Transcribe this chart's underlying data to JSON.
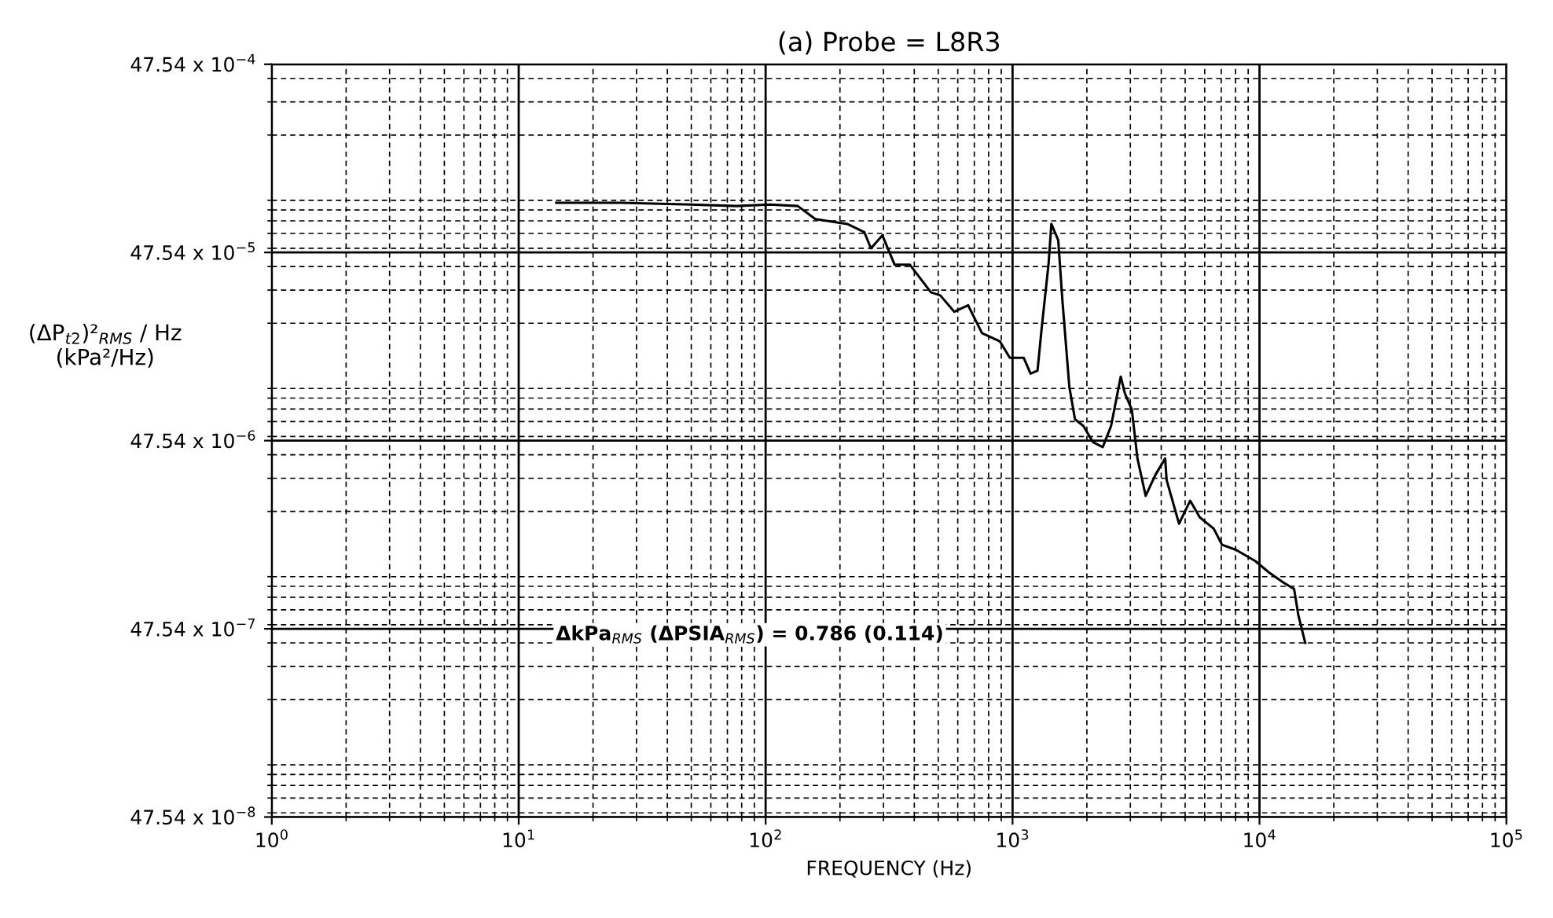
{
  "chart_data": {
    "type": "line",
    "title": "(a) Probe = L8R3",
    "xlabel": "FREQUENCY (Hz)",
    "ylabel": "(ΔP$_{t2}$)²$_{RMS}$ / Hz\n(kPa²/Hz)",
    "log": "xy",
    "grid": true,
    "marker": "none",
    "line_style": "solid",
    "xlim": [
      1,
      100000
    ],
    "xticks": [
      {
        "value": 1,
        "label": "10$^{0}$"
      },
      {
        "value": 10,
        "label": "10$^{1}$"
      },
      {
        "value": 100,
        "label": "10$^{2}$"
      },
      {
        "value": 1000,
        "label": "10$^{3}$"
      },
      {
        "value": 10000,
        "label": "10$^{4}$"
      },
      {
        "value": 100000,
        "label": "10$^{5}$"
      }
    ],
    "ylim": [
      4.754e-07,
      0.004754
    ],
    "yticks": [
      {
        "value": 4.754e-07,
        "label": "47.54 x 10$^{−8}$"
      },
      {
        "value": 4.754e-06,
        "label": "47.54 x 10$^{−7}$"
      },
      {
        "value": 4.754e-05,
        "label": "47.54 x 10$^{−6}$"
      },
      {
        "value": 0.0004754,
        "label": "47.54 x 10$^{−5}$"
      },
      {
        "value": 0.004754,
        "label": "47.54 x 10$^{−4}$"
      }
    ],
    "annotations": [
      "ΔkPa$_{RMS}$ (ΔPSIA$_{RMS}$) = 0.786 (0.114)"
    ],
    "series": [
      {
        "color": "#000000",
        "x": [
          14.2,
          26.1,
          49.7,
          76.2,
          104,
          135,
          159,
          214,
          251,
          267,
          297,
          333,
          384,
          467,
          510,
          581,
          661,
          752,
          889,
          975,
          1109,
          1183,
          1262,
          1312,
          1400,
          1436,
          1531,
          1592,
          1698,
          1790,
          1936,
          2118,
          2318,
          2506,
          2742,
          2851,
          3041,
          3205,
          3460,
          3790,
          4150,
          4206,
          4723,
          5237,
          5733,
          6527,
          7053,
          8022,
          9612,
          10940,
          12470,
          13810,
          14360,
          15320
        ],
        "values": [
          0.000873,
          0.000873,
          0.000855,
          0.000839,
          0.000855,
          0.000839,
          0.000715,
          0.000674,
          0.00061,
          0.0005,
          0.000586,
          0.000409,
          0.000409,
          0.000292,
          0.000281,
          0.00023,
          0.000249,
          0.000177,
          0.00016,
          0.000131,
          0.000131,
          0.000108,
          0.000112,
          0.000188,
          0.000418,
          0.000674,
          0.000552,
          0.000264,
          9.18e-05,
          6.17e-05,
          5.69e-05,
          4.66e-05,
          4.39e-05,
          5.69e-05,
          0.000104,
          8.47e-05,
          6.95e-05,
          3.82e-05,
          2.42e-05,
          3.13e-05,
          3.82e-05,
          2.94e-05,
          1.72e-05,
          2.28e-05,
          1.86e-05,
          1.62e-05,
          1.33e-05,
          1.25e-05,
          1.09e-05,
          9.46e-06,
          8.39e-06,
          7.74e-06,
          5.64e-06,
          4.01e-06
        ]
      }
    ]
  }
}
